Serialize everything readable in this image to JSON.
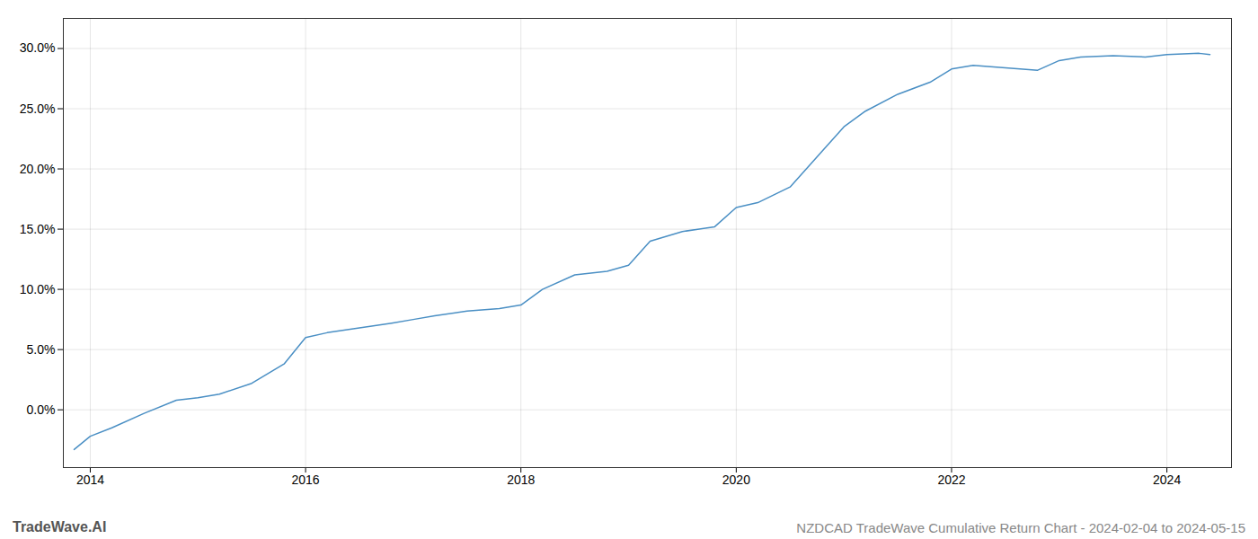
{
  "chart_data": {
    "type": "line",
    "title": "NZDCAD TradeWave Cumulative Return Chart - 2024-02-04 to 2024-05-15",
    "annotations": [
      "TradeWave.AI"
    ],
    "color": "#4a8fc4",
    "grid": true,
    "x": [
      2013.85,
      2014.0,
      2014.2,
      2014.5,
      2014.8,
      2015.0,
      2015.2,
      2015.5,
      2015.8,
      2016.0,
      2016.2,
      2016.5,
      2016.8,
      2017.0,
      2017.2,
      2017.5,
      2017.8,
      2018.0,
      2018.2,
      2018.5,
      2018.8,
      2019.0,
      2019.2,
      2019.5,
      2019.8,
      2020.0,
      2020.2,
      2020.5,
      2020.8,
      2021.0,
      2021.2,
      2021.5,
      2021.8,
      2022.0,
      2022.2,
      2022.5,
      2022.8,
      2023.0,
      2023.2,
      2023.5,
      2023.8,
      2024.0,
      2024.3,
      2024.4
    ],
    "values": [
      -0.033,
      -0.022,
      -0.015,
      -0.003,
      0.008,
      0.01,
      0.013,
      0.022,
      0.038,
      0.06,
      0.064,
      0.068,
      0.072,
      0.075,
      0.078,
      0.082,
      0.084,
      0.087,
      0.1,
      0.112,
      0.115,
      0.12,
      0.14,
      0.148,
      0.152,
      0.168,
      0.172,
      0.185,
      0.215,
      0.235,
      0.248,
      0.262,
      0.272,
      0.283,
      0.286,
      0.284,
      0.282,
      0.29,
      0.293,
      0.294,
      0.293,
      0.295,
      0.296,
      0.295
    ],
    "xlim": [
      2013.75,
      2024.6
    ],
    "xticks": [
      2014,
      2016,
      2018,
      2020,
      2022,
      2024
    ],
    "ylim": [
      -0.048,
      0.325
    ],
    "yticks": [
      {
        "value": 0.0,
        "label": "0.0%"
      },
      {
        "value": 0.05,
        "label": "5.0%"
      },
      {
        "value": 0.1,
        "label": "10.0%"
      },
      {
        "value": 0.15,
        "label": "15.0%"
      },
      {
        "value": 0.2,
        "label": "20.0%"
      },
      {
        "value": 0.25,
        "label": "25.0%"
      },
      {
        "value": 0.3,
        "label": "30.0%"
      }
    ]
  }
}
